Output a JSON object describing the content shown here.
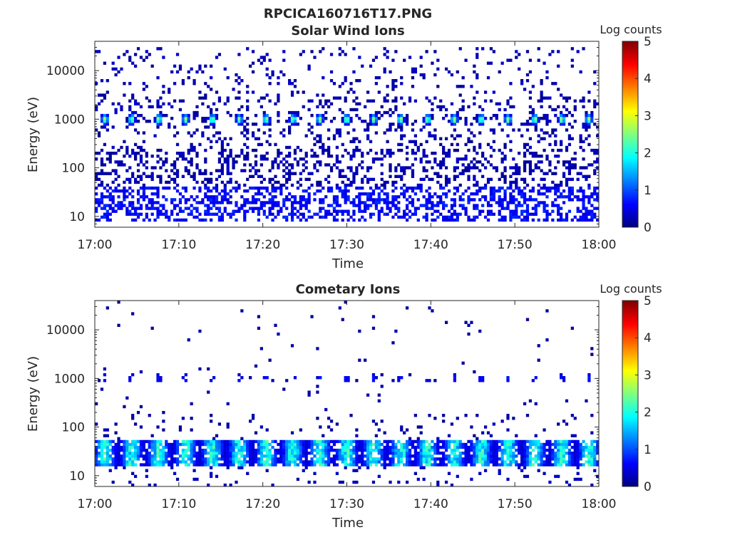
{
  "figure": {
    "title": "RPCICA160716T17.PNG"
  },
  "chart_data": [
    {
      "type": "heatmap",
      "title": "Solar Wind Ions",
      "xlabel": "Time",
      "ylabel": "Energy (eV)",
      "x_ticks": [
        "17:00",
        "17:10",
        "17:20",
        "17:30",
        "17:40",
        "17:50",
        "18:00"
      ],
      "x_range": [
        "17:00",
        "18:00"
      ],
      "y_scale": "log",
      "y_ticks": [
        10,
        100,
        1000,
        10000
      ],
      "y_tick_labels": [
        "10",
        "100",
        "1000",
        "10000"
      ],
      "y_range": [
        6,
        40000
      ],
      "colorbar": {
        "label": "Log counts",
        "range": [
          0,
          5
        ],
        "ticks": [
          "0",
          "1",
          "2",
          "3",
          "4",
          "5"
        ],
        "colormap": "jet"
      },
      "beam_times_min": [
        1.2,
        4.4,
        7.6,
        10.8,
        14,
        17.2,
        20.4,
        23.6,
        26.8,
        30,
        33.2,
        36.4,
        39.6,
        42.8,
        46,
        49.2,
        52.4,
        55.6,
        58.8
      ],
      "beam_energy_eV": 1000,
      "beam_peak_log_counts": 2.6,
      "low_energy_band_eV": [
        8,
        40
      ],
      "low_energy_level_log_counts": 0.7,
      "background_level_log_counts": 0.1
    },
    {
      "type": "heatmap",
      "title": "Cometary Ions",
      "xlabel": "Time",
      "ylabel": "Energy (eV)",
      "x_ticks": [
        "17:00",
        "17:10",
        "17:20",
        "17:30",
        "17:40",
        "17:50",
        "18:00"
      ],
      "x_range": [
        "17:00",
        "18:00"
      ],
      "y_scale": "log",
      "y_ticks": [
        10,
        100,
        1000,
        10000
      ],
      "y_tick_labels": [
        "10",
        "100",
        "1000",
        "10000"
      ],
      "y_range": [
        6,
        40000
      ],
      "colorbar": {
        "label": "Log counts",
        "range": [
          0,
          5
        ],
        "ticks": [
          "0",
          "1",
          "2",
          "3",
          "4",
          "5"
        ],
        "colormap": "jet"
      },
      "beam_times_min": [
        1.2,
        4.4,
        7.6,
        10.8,
        14,
        17.2,
        20.4,
        23.6,
        26.8,
        30,
        33.2,
        36.4,
        39.6,
        42.8,
        46,
        49.2,
        52.4,
        55.6,
        58.8
      ],
      "beam_energy_eV": 1000,
      "beam_peak_log_counts": 0.5,
      "low_energy_band_eV": [
        15,
        55
      ],
      "low_energy_peak_log_counts": 2.0,
      "background_level_log_counts": 0.05
    }
  ]
}
